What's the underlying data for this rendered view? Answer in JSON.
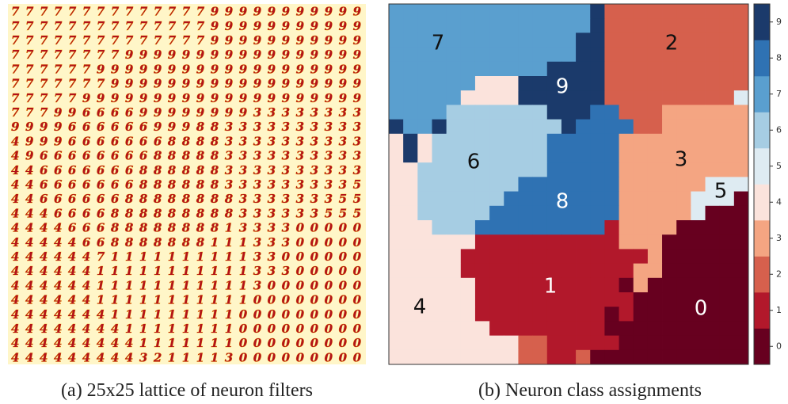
{
  "figure": {
    "lattice": {
      "caption": "(a) 25x25 lattice of neuron filters",
      "rows": [
        "7777777777777799999999999",
        "7777777777777799999999999",
        "7777777777777799999999999",
        "7777777799999999999999999",
        "7777779999999999999999999",
        "7777777999999999999999999",
        "7777799999999999999999999",
        "7779966669999999933333333",
        "9999666666999883333333333",
        "4999666666688883333333333",
        "4966666666888883333333333",
        "4466666668888883333333333",
        "4466666668888883333333335",
        "4466666688888888333333355",
        "4446666888888888333333555",
        "4444666888888881333300000",
        "4444466888888811133300000",
        "4444447111111111133000000",
        "4444441111111111133300000",
        "4444441111111111130000000",
        "4444441111111111100000000",
        "4444444111111111000000000",
        "4444444411111111000000000",
        "4444444441111111000000000",
        "4444444443211113000000000"
      ]
    },
    "class_map": {
      "caption": "(b) Neuron class assignments",
      "rows": [
        [
          7,
          7,
          7,
          7,
          7,
          7,
          7,
          7,
          7,
          7,
          7,
          7,
          7,
          7,
          9,
          2,
          2,
          2,
          2,
          2,
          2,
          2,
          2,
          2,
          2
        ],
        [
          7,
          7,
          7,
          7,
          7,
          7,
          7,
          7,
          7,
          7,
          7,
          7,
          7,
          7,
          9,
          2,
          2,
          2,
          2,
          2,
          2,
          2,
          2,
          2,
          2
        ],
        [
          7,
          7,
          7,
          7,
          7,
          7,
          7,
          7,
          7,
          7,
          7,
          7,
          7,
          9,
          9,
          2,
          2,
          2,
          2,
          2,
          2,
          2,
          2,
          2,
          2
        ],
        [
          7,
          7,
          7,
          7,
          7,
          7,
          7,
          7,
          7,
          7,
          7,
          7,
          7,
          9,
          9,
          2,
          2,
          2,
          2,
          2,
          2,
          2,
          2,
          2,
          2
        ],
        [
          7,
          7,
          7,
          7,
          7,
          7,
          7,
          7,
          7,
          7,
          7,
          9,
          9,
          9,
          9,
          2,
          2,
          2,
          2,
          2,
          2,
          2,
          2,
          2,
          2
        ],
        [
          7,
          7,
          7,
          7,
          7,
          7,
          4,
          4,
          4,
          9,
          9,
          9,
          9,
          9,
          9,
          2,
          2,
          2,
          2,
          2,
          2,
          2,
          2,
          2,
          2
        ],
        [
          7,
          7,
          7,
          7,
          7,
          4,
          4,
          4,
          4,
          9,
          9,
          9,
          9,
          9,
          9,
          2,
          2,
          2,
          2,
          2,
          2,
          2,
          2,
          2,
          5
        ],
        [
          7,
          7,
          7,
          7,
          6,
          6,
          6,
          6,
          6,
          6,
          6,
          9,
          9,
          9,
          8,
          8,
          2,
          2,
          2,
          3,
          3,
          3,
          3,
          3,
          3
        ],
        [
          9,
          7,
          7,
          9,
          6,
          6,
          6,
          6,
          6,
          6,
          6,
          6,
          9,
          8,
          8,
          8,
          8,
          2,
          2,
          3,
          3,
          3,
          3,
          3,
          3
        ],
        [
          4,
          9,
          4,
          6,
          6,
          6,
          6,
          6,
          6,
          6,
          6,
          8,
          8,
          8,
          8,
          8,
          3,
          3,
          3,
          3,
          3,
          3,
          3,
          3,
          3
        ],
        [
          4,
          9,
          4,
          6,
          6,
          6,
          6,
          6,
          6,
          6,
          6,
          8,
          8,
          8,
          8,
          8,
          3,
          3,
          3,
          3,
          3,
          3,
          3,
          3,
          3
        ],
        [
          4,
          4,
          6,
          6,
          6,
          6,
          6,
          6,
          6,
          6,
          6,
          8,
          8,
          8,
          8,
          8,
          3,
          3,
          3,
          3,
          3,
          3,
          3,
          3,
          3
        ],
        [
          4,
          4,
          6,
          6,
          6,
          6,
          6,
          6,
          6,
          8,
          8,
          8,
          8,
          8,
          8,
          8,
          3,
          3,
          3,
          3,
          3,
          3,
          5,
          5,
          5
        ],
        [
          4,
          4,
          6,
          6,
          6,
          6,
          6,
          6,
          8,
          8,
          8,
          8,
          8,
          8,
          8,
          8,
          3,
          3,
          3,
          3,
          3,
          5,
          5,
          5,
          0
        ],
        [
          4,
          4,
          6,
          6,
          6,
          6,
          6,
          8,
          8,
          8,
          8,
          8,
          8,
          8,
          8,
          8,
          3,
          3,
          3,
          3,
          3,
          5,
          0,
          0,
          0
        ],
        [
          4,
          4,
          4,
          6,
          6,
          6,
          8,
          8,
          8,
          8,
          8,
          8,
          8,
          8,
          8,
          1,
          3,
          3,
          3,
          3,
          0,
          0,
          0,
          0,
          0
        ],
        [
          4,
          4,
          4,
          4,
          4,
          4,
          1,
          1,
          1,
          1,
          1,
          1,
          1,
          1,
          1,
          1,
          3,
          3,
          3,
          0,
          0,
          0,
          0,
          0,
          0
        ],
        [
          4,
          4,
          4,
          4,
          4,
          1,
          1,
          1,
          1,
          1,
          1,
          1,
          1,
          1,
          1,
          1,
          1,
          1,
          3,
          0,
          0,
          0,
          0,
          0,
          0
        ],
        [
          4,
          4,
          4,
          4,
          4,
          1,
          1,
          1,
          1,
          1,
          1,
          1,
          1,
          1,
          1,
          1,
          1,
          3,
          3,
          0,
          0,
          0,
          0,
          0,
          0
        ],
        [
          4,
          4,
          4,
          4,
          4,
          4,
          1,
          1,
          1,
          1,
          1,
          1,
          1,
          1,
          1,
          1,
          0,
          3,
          0,
          0,
          0,
          0,
          0,
          0,
          0
        ],
        [
          4,
          4,
          4,
          4,
          4,
          4,
          1,
          1,
          1,
          1,
          1,
          1,
          1,
          1,
          1,
          1,
          1,
          0,
          0,
          0,
          0,
          0,
          0,
          0,
          0
        ],
        [
          4,
          4,
          4,
          4,
          4,
          4,
          1,
          1,
          1,
          1,
          1,
          1,
          1,
          1,
          1,
          0,
          1,
          0,
          0,
          0,
          0,
          0,
          0,
          0,
          0
        ],
        [
          4,
          4,
          4,
          4,
          4,
          4,
          4,
          1,
          1,
          1,
          1,
          1,
          1,
          1,
          1,
          0,
          0,
          0,
          0,
          0,
          0,
          0,
          0,
          0,
          0
        ],
        [
          4,
          4,
          4,
          4,
          4,
          4,
          4,
          4,
          4,
          2,
          2,
          1,
          1,
          1,
          1,
          1,
          0,
          0,
          0,
          0,
          0,
          0,
          0,
          0,
          0
        ],
        [
          4,
          4,
          4,
          4,
          4,
          4,
          4,
          4,
          4,
          2,
          2,
          1,
          1,
          2,
          0,
          0,
          0,
          0,
          0,
          0,
          0,
          0,
          0,
          0,
          0
        ]
      ],
      "region_labels": [
        7,
        2,
        9,
        6,
        3,
        5,
        8,
        1,
        4,
        0
      ],
      "colors": [
        "#67001f",
        "#b2182b",
        "#d6604d",
        "#f4a582",
        "#fbe3dc",
        "#deebf2",
        "#a6cde3",
        "#5a9fcf",
        "#2f72b3",
        "#1b3a6b"
      ],
      "colorbar_ticks": [
        0,
        1,
        2,
        3,
        4,
        5,
        6,
        7,
        8,
        9
      ]
    }
  }
}
